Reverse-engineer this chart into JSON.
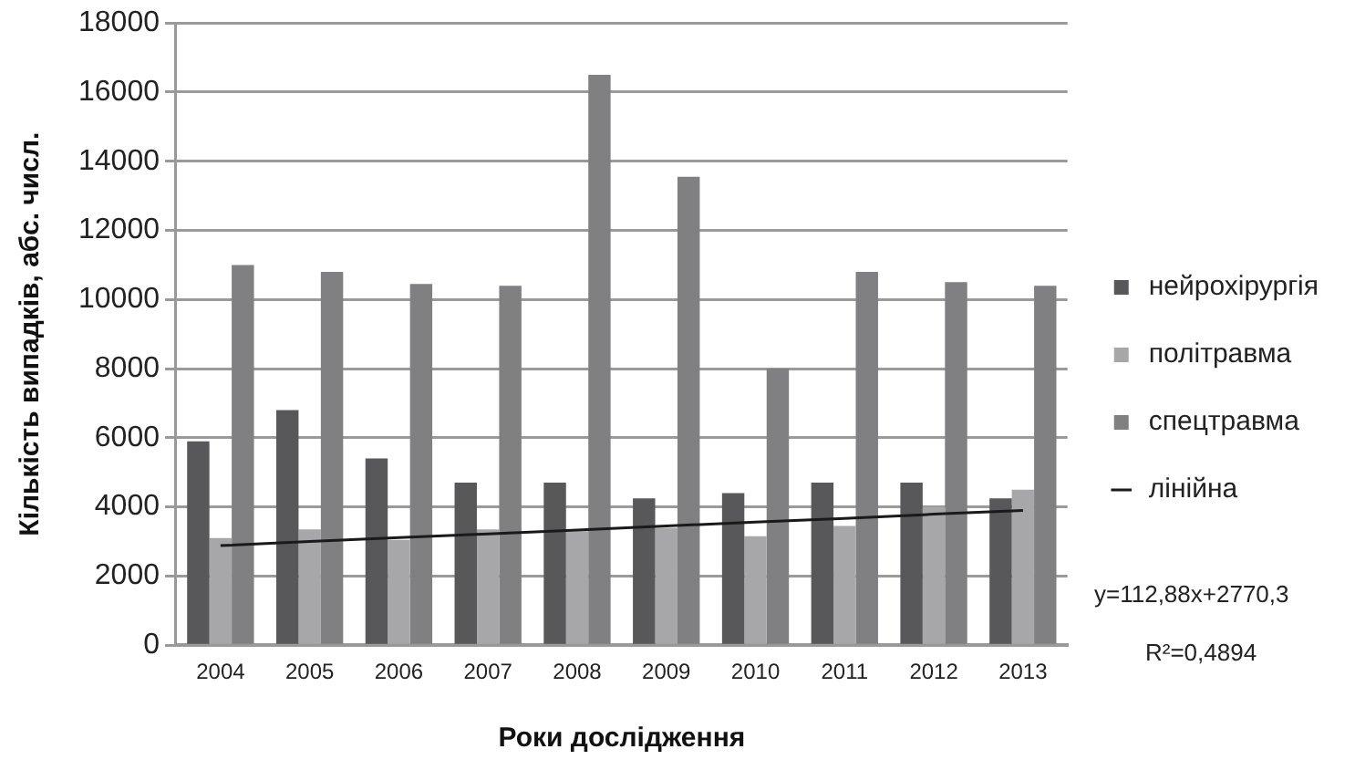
{
  "chart_data": {
    "type": "bar",
    "xlabel": "Роки дослідження",
    "ylabel": "Кількість випадків, абс. числ.",
    "categories": [
      "2004",
      "2005",
      "2006",
      "2007",
      "2008",
      "2009",
      "2010",
      "2011",
      "2012",
      "2013"
    ],
    "series": [
      {
        "name": "нейрохірургія",
        "color": "#58585a",
        "values": [
          5900,
          6800,
          5400,
          4700,
          4700,
          4250,
          4400,
          4700,
          4700,
          4250
        ]
      },
      {
        "name": "політравма",
        "color": "#a7a7a9",
        "values": [
          3100,
          3350,
          3050,
          3350,
          3300,
          3400,
          3150,
          3450,
          4000,
          4500
        ]
      },
      {
        "name": "спецтравма",
        "color": "#808083",
        "values": [
          11000,
          10800,
          10450,
          10400,
          16500,
          13550,
          8000,
          10800,
          10500,
          10400
        ]
      },
      {
        "name": "лінійна",
        "type": "line",
        "color": "#1a1a1a",
        "marker": "none",
        "line_style": "solid",
        "values": [
          2880,
          3000,
          3110,
          3220,
          3330,
          3450,
          3560,
          3670,
          3790,
          3900
        ]
      }
    ],
    "ylim": [
      0,
      18000
    ],
    "yticks": [
      0,
      2000,
      4000,
      6000,
      8000,
      10000,
      12000,
      14000,
      16000,
      18000
    ],
    "grid": "y",
    "legend": "right",
    "annotations": [
      "y=112,88x+2770,3",
      "R²=0,4894"
    ]
  }
}
